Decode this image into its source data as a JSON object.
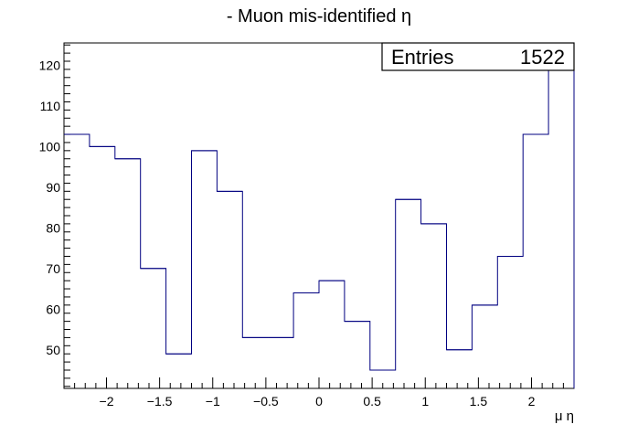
{
  "chart_data": {
    "type": "histogram",
    "title": "- Muon mis-identified η",
    "xlabel": "μ η",
    "ylabel": "",
    "xlim": [
      -2.4,
      2.4
    ],
    "ylim": [
      40.5,
      125.5
    ],
    "bin_edges": [
      -2.4,
      -2.16,
      -1.92,
      -1.68,
      -1.44,
      -1.2,
      -0.96,
      -0.72,
      -0.48,
      -0.24,
      0.0,
      0.24,
      0.48,
      0.72,
      0.96,
      1.2,
      1.44,
      1.68,
      1.92,
      2.16,
      2.4
    ],
    "values": [
      103,
      100,
      97,
      70,
      49,
      99,
      89,
      53,
      53,
      64,
      67,
      57,
      45,
      87,
      81,
      50,
      61,
      73,
      103,
      121
    ],
    "x_ticks": [
      -2,
      -1.5,
      -1,
      -0.5,
      0,
      0.5,
      1,
      1.5,
      2
    ],
    "x_tick_labels": [
      "−2",
      "−1.5",
      "−1",
      "−0.5",
      "0",
      "0.5",
      "1",
      "1.5",
      "2"
    ],
    "y_ticks": [
      50,
      60,
      70,
      80,
      90,
      100,
      110,
      120
    ],
    "y_tick_labels": [
      "50",
      "60",
      "70",
      "80",
      "90",
      "100",
      "110",
      "120"
    ],
    "stats": {
      "label": "Entries",
      "value": "1522"
    },
    "line_color": "#000080",
    "grid": false
  }
}
